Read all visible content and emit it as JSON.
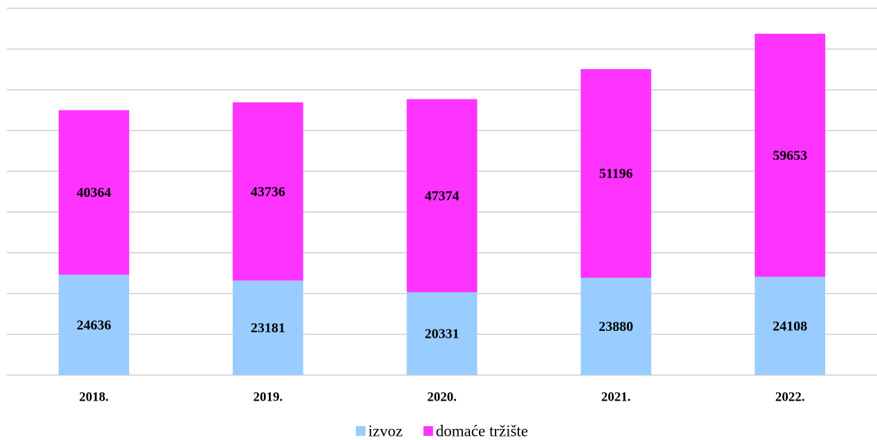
{
  "chart_data": {
    "type": "stacked_bar",
    "categories": [
      "2018.",
      "2019.",
      "2020.",
      "2021.",
      "2022."
    ],
    "series": [
      {
        "name": "izvoz",
        "color": "#99ccff",
        "values": [
          24636,
          23181,
          20331,
          23880,
          24108
        ]
      },
      {
        "name": "domaće tržište",
        "color": "#ff33ff",
        "values": [
          40364,
          43736,
          47374,
          51196,
          59653
        ]
      }
    ],
    "ylim": [
      0,
      90000
    ],
    "yticks": [
      0,
      10000,
      20000,
      30000,
      40000,
      50000,
      60000,
      70000,
      80000,
      90000
    ],
    "grid": true,
    "legend": "bottom"
  }
}
